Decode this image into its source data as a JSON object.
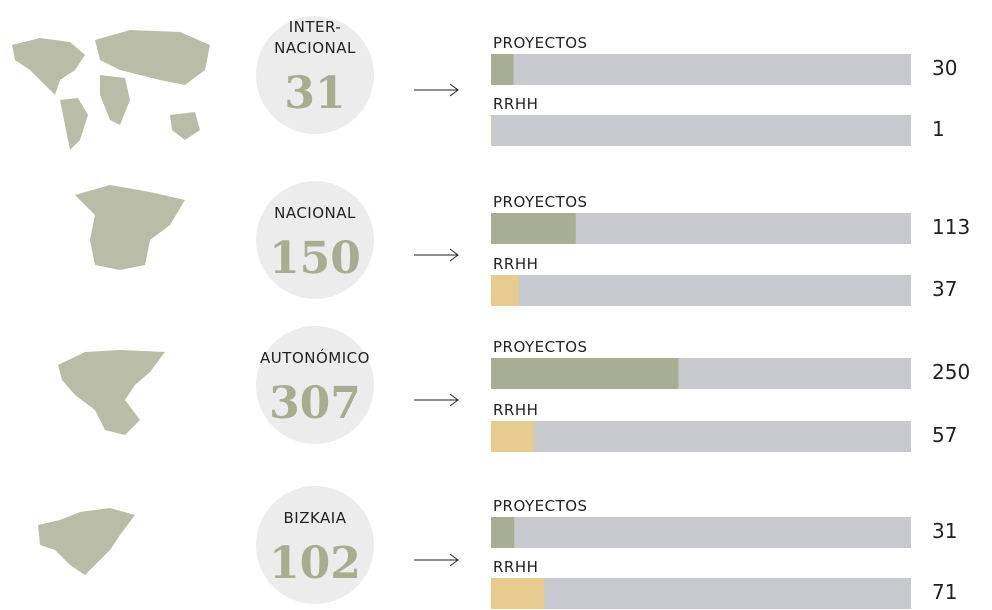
{
  "groups": [
    {
      "label_lines": [
        "INTER-",
        "NACIONAL"
      ],
      "total": 31,
      "bars": [
        {
          "label": "PROYECTOS",
          "value": 30,
          "color": "#a8ae93"
        },
        {
          "label": "RRHH",
          "value": 1,
          "color": "#e8cb8f"
        }
      ]
    },
    {
      "label_lines": [
        "NACIONAL"
      ],
      "total": 150,
      "bars": [
        {
          "label": "PROYECTOS",
          "value": 113,
          "color": "#a8ae93"
        },
        {
          "label": "RRHH",
          "value": 37,
          "color": "#e8cb8f"
        }
      ]
    },
    {
      "label_lines": [
        "AUTONÓMICO"
      ],
      "total": 307,
      "bars": [
        {
          "label": "PROYECTOS",
          "value": 250,
          "color": "#a8ae93"
        },
        {
          "label": "RRHH",
          "value": 57,
          "color": "#e8cb8f"
        }
      ]
    },
    {
      "label_lines": [
        "BIZKAIA"
      ],
      "total": 102,
      "bars": [
        {
          "label": "PROYECTOS",
          "value": 31,
          "color": "#a8ae93"
        },
        {
          "label": "RRHH",
          "value": 71,
          "color": "#e8cb8f"
        }
      ]
    }
  ]
}
